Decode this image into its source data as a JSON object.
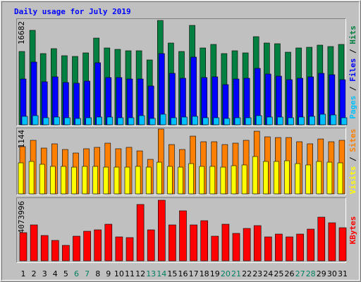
{
  "chart_data": {
    "type": "bar",
    "title": "Daily usage for July 2019",
    "categories": [
      "1",
      "2",
      "3",
      "4",
      "5",
      "6",
      "7",
      "8",
      "9",
      "10",
      "11",
      "12",
      "13",
      "14",
      "15",
      "16",
      "17",
      "18",
      "19",
      "20",
      "21",
      "22",
      "23",
      "24",
      "25",
      "26",
      "27",
      "28",
      "29",
      "30",
      "31"
    ],
    "category_colors": [
      "#000000",
      "#000000",
      "#000000",
      "#000000",
      "#000000",
      "#008060",
      "#008060",
      "#000000",
      "#000000",
      "#000000",
      "#000000",
      "#000000",
      "#008060",
      "#008060",
      "#000000",
      "#000000",
      "#000000",
      "#000000",
      "#000000",
      "#008060",
      "#008060",
      "#000000",
      "#000000",
      "#000000",
      "#000000",
      "#000000",
      "#008060",
      "#008060",
      "#000000",
      "#000000",
      "#000000"
    ],
    "legend_separator": " / ",
    "panels": [
      {
        "ylim": [
          0,
          16682
        ],
        "yticks": [
          16682
        ],
        "series": [
          {
            "name": "Hits",
            "color": "#008040",
            "values": [
              11722,
              15105,
              11385,
              12174,
              11047,
              10934,
              11497,
              13865,
              12286,
              12061,
              11836,
              11836,
              10370,
              16682,
              13075,
              11722,
              15893,
              12286,
              12850,
              11385,
              11836,
              11497,
              14090,
              13075,
              12963,
              11610,
              12286,
              12399,
              12737,
              12512,
              12850
            ]
          },
          {
            "name": "Files",
            "color": "#0000ff",
            "values": [
              7326,
              10033,
              6876,
              7665,
              6764,
              6651,
              6989,
              9920,
              7553,
              7553,
              7326,
              7326,
              6200,
              11385,
              8229,
              7440,
              10822,
              7553,
              7665,
              6425,
              7326,
              7440,
              9018,
              8116,
              7778,
              7214,
              7440,
              7665,
              8229,
              8003,
              7214
            ]
          },
          {
            "name": "Pages",
            "color": "#00c0ff",
            "values": [
              1352,
              1465,
              1127,
              1240,
              1127,
              1014,
              1127,
              1240,
              1240,
              1127,
              1127,
              1465,
              1014,
              1690,
              1127,
              1240,
              1352,
              1127,
              1127,
              1014,
              1127,
              1127,
              1465,
              1240,
              1240,
              1127,
              1240,
              1352,
              1690,
              1578,
              1127
            ]
          }
        ]
      },
      {
        "ylim": [
          0,
          1144
        ],
        "yticks": [
          1144
        ],
        "series": [
          {
            "name": "Sites",
            "color": "#ff8000",
            "values": [
              833,
              945,
              808,
              883,
              783,
              721,
              796,
              821,
              895,
              796,
              821,
              758,
              609,
              1144,
              870,
              783,
              1019,
              920,
              920,
              870,
              895,
              945,
              1106,
              1007,
              994,
              994,
              920,
              883,
              969,
              920,
              945
            ]
          },
          {
            "name": "Visits",
            "color": "#ffff00",
            "values": [
              547,
              572,
              522,
              485,
              485,
              472,
              485,
              485,
              472,
              472,
              472,
              485,
              472,
              559,
              485,
              472,
              534,
              485,
              485,
              472,
              497,
              510,
              659,
              572,
              572,
              584,
              534,
              510,
              572,
              559,
              547
            ]
          }
        ]
      },
      {
        "ylim": [
          0,
          4073996
        ],
        "yticks": [
          4073996
        ],
        "series": [
          {
            "name": "KBytes",
            "color": "#ff0000",
            "values": [
              1894900,
              2416000,
              1705400,
              1373800,
              1042200,
              1658000,
              1989600,
              2084400,
              2463300,
              1610600,
              1563300,
              3789800,
              2084400,
              4073996,
              2416000,
              3363400,
              2416000,
              2700200,
              1658000,
              2463300,
              1847500,
              2179100,
              2368600,
              1610600,
              1800100,
              1610600,
              1800100,
              2131700,
              2937100,
              2558100,
              2226500
            ]
          }
        ]
      }
    ]
  }
}
